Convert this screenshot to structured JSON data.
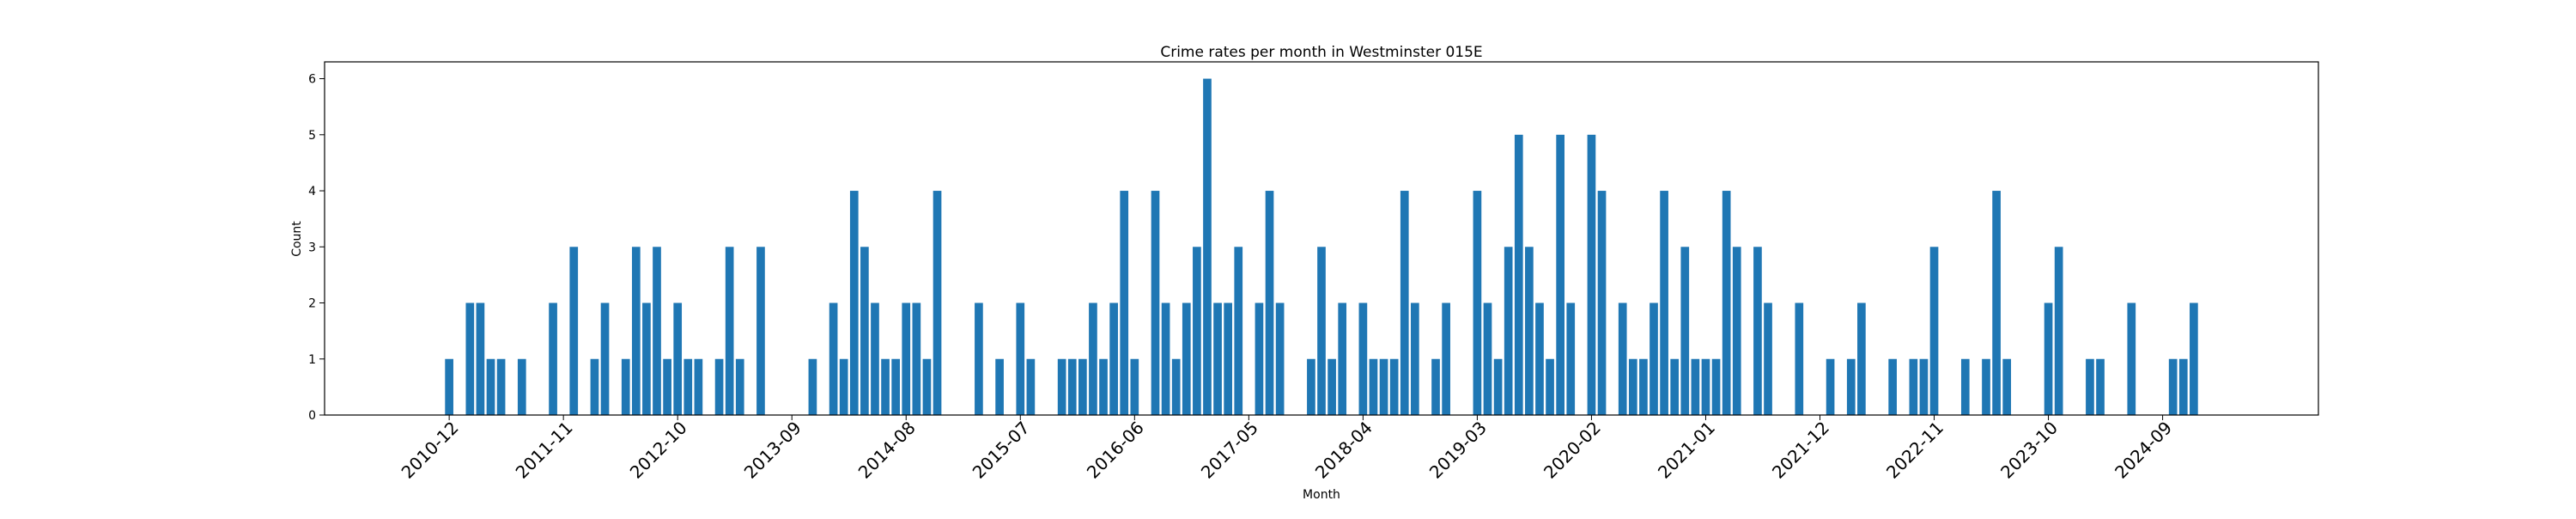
{
  "chart_data": {
    "type": "bar",
    "title": "Crime rates per month in Westminster 015E",
    "xlabel": "Month",
    "ylabel": "Count",
    "ylim": [
      0,
      6.3
    ],
    "yticks": [
      0,
      1,
      2,
      3,
      4,
      5,
      6
    ],
    "xticks": [
      "2010-12",
      "2011-11",
      "2012-10",
      "2013-09",
      "2014-08",
      "2015-07",
      "2016-06",
      "2017-05",
      "2018-04",
      "2019-03",
      "2020-02",
      "2021-01",
      "2021-12",
      "2022-11",
      "2023-10",
      "2024-09"
    ],
    "x_range": [
      "2009-12",
      "2025-12"
    ],
    "color": "#1f77b4",
    "grid": false,
    "series": [
      {
        "x": [
          "2010-12",
          "2011-02",
          "2011-03",
          "2011-04",
          "2011-05",
          "2011-07",
          "2011-10",
          "2011-12",
          "2012-02",
          "2012-03",
          "2012-05",
          "2012-06",
          "2012-07",
          "2012-08",
          "2012-09",
          "2012-10",
          "2012-11",
          "2012-12",
          "2013-02",
          "2013-03",
          "2013-04",
          "2013-06",
          "2013-11",
          "2014-01",
          "2014-02",
          "2014-03",
          "2014-04",
          "2014-05",
          "2014-06",
          "2014-07",
          "2014-08",
          "2014-09",
          "2014-10",
          "2014-11",
          "2015-03",
          "2015-05",
          "2015-07",
          "2015-08",
          "2015-11",
          "2015-12",
          "2016-01",
          "2016-02",
          "2016-03",
          "2016-04",
          "2016-05",
          "2016-06",
          "2016-08",
          "2016-09",
          "2016-10",
          "2016-11",
          "2016-12",
          "2017-01",
          "2017-02",
          "2017-03",
          "2017-04",
          "2017-06",
          "2017-07",
          "2017-08",
          "2017-11",
          "2017-12",
          "2018-01",
          "2018-02",
          "2018-04",
          "2018-05",
          "2018-06",
          "2018-07",
          "2018-08",
          "2018-09",
          "2018-11",
          "2018-12",
          "2019-03",
          "2019-04",
          "2019-05",
          "2019-06",
          "2019-07",
          "2019-08",
          "2019-09",
          "2019-10",
          "2019-11",
          "2019-12",
          "2020-02",
          "2020-03",
          "2020-05",
          "2020-06",
          "2020-07",
          "2020-08",
          "2020-09",
          "2020-10",
          "2020-11",
          "2020-12",
          "2021-01",
          "2021-02",
          "2021-03",
          "2021-04",
          "2021-06",
          "2021-07",
          "2021-10",
          "2022-01",
          "2022-03",
          "2022-04",
          "2022-07",
          "2022-09",
          "2022-10",
          "2022-11",
          "2023-02",
          "2023-04",
          "2023-05",
          "2023-06",
          "2023-10",
          "2023-11",
          "2024-02",
          "2024-03",
          "2024-06",
          "2024-10",
          "2024-11",
          "2024-12"
        ],
        "values": [
          1,
          2,
          2,
          1,
          1,
          1,
          2,
          3,
          1,
          2,
          1,
          3,
          2,
          3,
          1,
          2,
          1,
          1,
          1,
          3,
          1,
          3,
          1,
          2,
          1,
          4,
          3,
          2,
          1,
          1,
          2,
          2,
          1,
          4,
          2,
          1,
          2,
          1,
          1,
          1,
          1,
          2,
          1,
          2,
          4,
          1,
          4,
          2,
          1,
          2,
          3,
          6,
          2,
          2,
          3,
          2,
          4,
          2,
          1,
          3,
          1,
          2,
          2,
          1,
          1,
          1,
          4,
          2,
          1,
          2,
          4,
          2,
          1,
          3,
          5,
          3,
          2,
          1,
          5,
          2,
          5,
          4,
          2,
          1,
          1,
          2,
          4,
          1,
          3,
          1,
          1,
          1,
          4,
          3,
          3,
          2,
          2,
          1,
          1,
          2,
          1,
          1,
          1,
          3,
          1,
          1,
          4,
          1,
          2,
          3,
          1,
          1,
          2,
          1,
          1,
          2
        ]
      }
    ]
  }
}
